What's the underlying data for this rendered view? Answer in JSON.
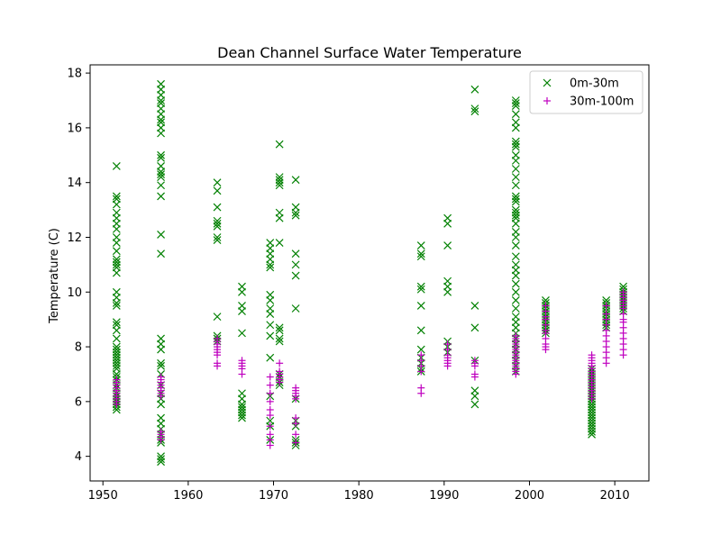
{
  "chart_data": {
    "type": "scatter",
    "title": "Dean Channel Surface Water Temperature",
    "xlabel": "",
    "ylabel": "Temperature (C)",
    "xlim": [
      1948.5,
      2014
    ],
    "ylim": [
      3.1,
      18.3
    ],
    "xticks": [
      1950,
      1960,
      1970,
      1980,
      1990,
      2000,
      2010
    ],
    "yticks": [
      4,
      6,
      8,
      10,
      12,
      14,
      16,
      18
    ],
    "grid": false,
    "legend": "top-right",
    "series": [
      {
        "name": "0m-30m",
        "marker": "x",
        "color": "#008000",
        "groups": [
          {
            "x": 1951.6,
            "y": [
              14.6,
              13.5,
              13.4,
              13.2,
              12.9,
              12.7,
              12.5,
              12.3,
              12.0,
              11.8,
              11.5,
              11.2,
              11.1,
              11.0,
              10.9,
              10.7,
              10.0,
              9.8,
              9.6,
              9.5,
              8.9,
              8.8,
              8.6,
              8.3,
              8.0,
              7.9,
              7.8,
              7.7,
              7.6,
              7.5,
              7.4,
              7.3,
              7.2,
              7.0,
              6.9,
              6.8,
              6.6,
              6.5,
              6.3,
              6.2,
              6.1,
              6.0,
              5.9,
              5.8,
              5.7
            ]
          },
          {
            "x": 1956.8,
            "y": [
              17.6,
              17.4,
              17.2,
              17.0,
              16.9,
              16.7,
              16.5,
              16.3,
              16.2,
              16.0,
              15.8,
              15.0,
              14.9,
              14.6,
              14.4,
              14.3,
              14.2,
              13.9,
              13.5,
              12.1,
              11.4,
              8.3,
              8.1,
              7.9,
              7.4,
              7.3,
              7.0,
              6.6,
              6.3,
              6.1,
              5.9,
              5.4,
              5.2,
              5.0,
              4.8,
              4.6,
              4.5,
              4.0,
              3.9,
              3.8
            ]
          },
          {
            "x": 1963.4,
            "y": [
              14.0,
              13.7,
              13.1,
              12.6,
              12.5,
              12.4,
              12.0,
              11.9,
              9.1,
              8.4,
              8.3,
              8.2
            ]
          },
          {
            "x": 1966.3,
            "y": [
              10.2,
              10.0,
              9.5,
              9.3,
              8.5,
              6.3,
              6.1,
              5.9,
              5.8,
              5.7,
              5.6,
              5.5,
              5.4
            ]
          },
          {
            "x": 1969.6,
            "y": [
              11.8,
              11.6,
              11.4,
              11.2,
              11.0,
              10.9,
              9.9,
              9.7,
              9.4,
              9.2,
              8.8,
              8.4,
              7.6,
              6.2,
              5.3,
              5.1,
              4.6
            ]
          },
          {
            "x": 1970.7,
            "y": [
              15.4,
              14.2,
              14.1,
              14.0,
              13.9,
              12.9,
              12.7,
              11.8,
              8.7,
              8.6,
              8.3,
              8.2,
              7.0,
              6.9,
              6.7,
              6.6
            ]
          },
          {
            "x": 1972.6,
            "y": [
              14.1,
              13.1,
              12.9,
              12.8,
              11.4,
              11.0,
              10.6,
              9.4,
              6.1,
              5.3,
              5.1,
              4.6,
              4.5,
              4.4
            ]
          },
          {
            "x": 1987.3,
            "y": [
              11.7,
              11.4,
              11.3,
              10.2,
              10.1,
              9.5,
              8.6,
              7.9,
              7.6,
              7.4,
              7.2,
              7.1
            ]
          },
          {
            "x": 1990.4,
            "y": [
              12.7,
              12.5,
              11.7,
              10.4,
              10.2,
              10.0,
              8.2,
              8.0,
              7.8
            ]
          },
          {
            "x": 1993.6,
            "y": [
              17.4,
              16.7,
              16.6,
              9.5,
              8.7,
              7.5,
              6.4,
              6.2,
              5.9
            ]
          },
          {
            "x": 1998.4,
            "y": [
              17.0,
              16.9,
              16.8,
              16.5,
              16.2,
              16.0,
              15.5,
              15.4,
              15.3,
              15.0,
              14.8,
              14.5,
              14.2,
              13.9,
              13.5,
              13.4,
              13.3,
              13.0,
              12.9,
              12.8,
              12.7,
              12.5,
              12.2,
              12.0,
              11.7,
              11.3,
              11.0,
              10.8,
              10.6,
              10.3,
              10.0,
              9.7,
              9.4,
              9.1,
              8.9,
              8.7,
              8.5,
              8.3,
              8.1,
              7.9,
              7.7,
              7.5,
              7.3,
              7.1
            ]
          },
          {
            "x": 2001.9,
            "y": [
              9.7,
              9.6,
              9.5,
              9.4,
              9.3,
              9.2,
              9.1,
              9.0,
              8.9,
              8.8,
              8.7,
              8.6,
              8.5
            ]
          },
          {
            "x": 2007.3,
            "y": [
              7.2,
              7.1,
              7.0,
              6.9,
              6.8,
              6.7,
              6.6,
              6.5,
              6.4,
              6.3,
              6.2,
              6.1,
              6.0,
              5.9,
              5.8,
              5.7,
              5.6,
              5.5,
              5.4,
              5.3,
              5.2,
              5.1,
              5.0,
              4.9,
              4.8
            ]
          },
          {
            "x": 2009.0,
            "y": [
              9.7,
              9.6,
              9.5,
              9.4,
              9.3,
              9.2,
              9.1,
              9.0,
              8.9,
              8.8,
              8.7
            ]
          },
          {
            "x": 2011.0,
            "y": [
              10.2,
              10.1,
              10.0,
              9.9,
              9.8,
              9.7,
              9.6,
              9.5,
              9.4,
              9.3
            ]
          }
        ]
      },
      {
        "name": "30m-100m",
        "marker": "+",
        "color": "#bf00bf",
        "groups": [
          {
            "x": 1951.6,
            "y": [
              6.8,
              6.7,
              6.6,
              6.5,
              6.4,
              6.3,
              6.2,
              6.1,
              6.0,
              5.9
            ]
          },
          {
            "x": 1956.8,
            "y": [
              6.9,
              6.8,
              6.7,
              6.6,
              6.5,
              6.4,
              6.3,
              6.2,
              4.9,
              4.8,
              4.7,
              4.6
            ]
          },
          {
            "x": 1963.4,
            "y": [
              8.3,
              8.2,
              8.1,
              8.0,
              7.9,
              7.8,
              7.7,
              7.4,
              7.3
            ]
          },
          {
            "x": 1966.3,
            "y": [
              7.5,
              7.4,
              7.3,
              7.2,
              7.0
            ]
          },
          {
            "x": 1969.6,
            "y": [
              6.9,
              6.6,
              6.3,
              6.0,
              5.7,
              5.5,
              5.1,
              4.8,
              4.6,
              4.4
            ]
          },
          {
            "x": 1970.7,
            "y": [
              7.4,
              7.1,
              7.0,
              6.9,
              6.8,
              6.7
            ]
          },
          {
            "x": 1972.6,
            "y": [
              6.5,
              6.4,
              6.3,
              6.2,
              6.1,
              5.4,
              5.2,
              4.8,
              4.5
            ]
          },
          {
            "x": 1987.3,
            "y": [
              7.7,
              7.5,
              7.3,
              7.1,
              6.5,
              6.3
            ]
          },
          {
            "x": 1990.4,
            "y": [
              8.1,
              7.9,
              7.7,
              7.6,
              7.5,
              7.4,
              7.3
            ]
          },
          {
            "x": 1993.6,
            "y": [
              7.5,
              7.4,
              7.3,
              7.0,
              6.9
            ]
          },
          {
            "x": 1998.4,
            "y": [
              8.4,
              8.3,
              8.2,
              8.1,
              8.0,
              7.9,
              7.8,
              7.7,
              7.6,
              7.5,
              7.4,
              7.3,
              7.2,
              7.1,
              7.0
            ]
          },
          {
            "x": 2001.9,
            "y": [
              9.5,
              9.3,
              9.1,
              9.0,
              8.8,
              8.6,
              8.5,
              8.3,
              8.1,
              8.0,
              7.9
            ]
          },
          {
            "x": 2007.3,
            "y": [
              7.7,
              7.6,
              7.5,
              7.4,
              7.3,
              7.2,
              7.1,
              7.0,
              6.9,
              6.8,
              6.7,
              6.6,
              6.5,
              6.4,
              6.3,
              6.2,
              6.1
            ]
          },
          {
            "x": 2009.0,
            "y": [
              9.5,
              9.2,
              9.0,
              8.8,
              8.6,
              8.4,
              8.2,
              8.0,
              7.8,
              7.6,
              7.4
            ]
          },
          {
            "x": 2011.0,
            "y": [
              10.0,
              9.9,
              9.8,
              9.7,
              9.6,
              9.5,
              9.4,
              9.2,
              9.0,
              8.9,
              8.7,
              8.5,
              8.3,
              8.1,
              7.9,
              7.7
            ]
          }
        ]
      }
    ]
  }
}
